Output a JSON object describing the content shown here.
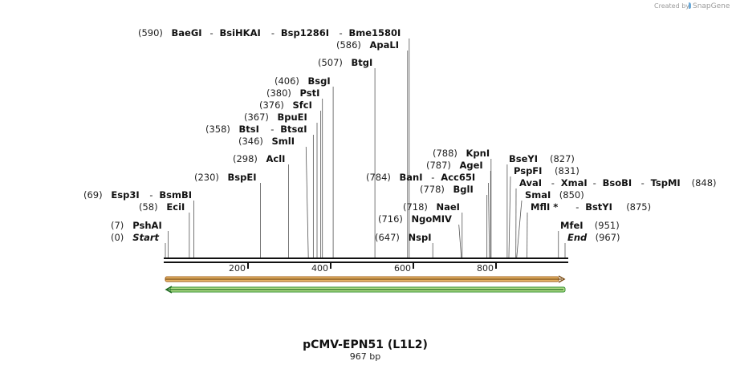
{
  "watermark": {
    "prefix": "Created by",
    "brand": "SnapGene"
  },
  "title": "pCMV-EPN51 (L1L2)",
  "subtitle": "967 bp",
  "sequence_length": 967,
  "ticks": [
    200,
    400,
    600,
    800
  ],
  "features": [
    {
      "name": "forward-feature",
      "direction": "forward",
      "start": 0,
      "end": 967,
      "color": "#e8b86a",
      "stroke": "#a0601a"
    },
    {
      "name": "reverse-feature",
      "direction": "reverse",
      "start": 0,
      "end": 967,
      "color": "#b5e08a",
      "stroke": "#2f8c2f"
    }
  ],
  "site_rows": [
    {
      "side": "left",
      "items": [
        {
          "pos": "(590)",
          "names": [
            "BaeGI",
            "BsiHKAI",
            "Bsp1286I",
            "Bme1580I"
          ]
        }
      ]
    },
    {
      "side": "left",
      "items": [
        {
          "pos": "(586)",
          "names": [
            "ApaLI"
          ]
        }
      ]
    },
    {
      "side": "left",
      "items": [
        {
          "pos": "(507)",
          "names": [
            "BtgI"
          ]
        }
      ]
    },
    {
      "side": "left",
      "items": [
        {
          "pos": "(406)",
          "names": [
            "BsgI"
          ]
        }
      ]
    },
    {
      "side": "left",
      "items": [
        {
          "pos": "(380)",
          "names": [
            "PstI"
          ]
        }
      ]
    },
    {
      "side": "left",
      "items": [
        {
          "pos": "(376)",
          "names": [
            "SfcI"
          ]
        }
      ]
    },
    {
      "side": "left",
      "items": [
        {
          "pos": "(367)",
          "names": [
            "BpuEI"
          ]
        }
      ]
    },
    {
      "side": "left",
      "items": [
        {
          "pos": "(358)",
          "names": [
            "BtsI",
            "BtsαI"
          ]
        }
      ]
    },
    {
      "side": "left",
      "items": [
        {
          "pos": "(346)",
          "names": [
            "SmlI"
          ]
        }
      ]
    },
    {
      "side": "left",
      "items": [
        {
          "pos": "(788)",
          "names": [
            "KpnI"
          ]
        }
      ]
    },
    {
      "side": "left",
      "items": [
        {
          "pos": "(787)",
          "names": [
            "AgeI"
          ]
        }
      ]
    },
    {
      "side": "left",
      "items": [
        {
          "pos": "(298)",
          "names": [
            "AclI"
          ]
        }
      ]
    },
    {
      "side": "right",
      "items": [
        {
          "pos": "(827)",
          "names": [
            "BseYI"
          ]
        }
      ]
    },
    {
      "side": "right",
      "items": [
        {
          "pos": "(831)",
          "names": [
            "PspFI"
          ]
        }
      ]
    },
    {
      "side": "left",
      "items": [
        {
          "pos": "(230)",
          "names": [
            "BspEI"
          ]
        }
      ]
    },
    {
      "side": "left",
      "items": [
        {
          "pos": "(784)",
          "names": [
            "BanI",
            "Acc65I"
          ]
        }
      ]
    },
    {
      "side": "right",
      "items": [
        {
          "pos": "(848)",
          "names": [
            "AvaI",
            "XmaI",
            "BsoBI",
            "TspMI"
          ]
        }
      ]
    },
    {
      "side": "left",
      "items": [
        {
          "pos": "(778)",
          "names": [
            "BglI"
          ]
        }
      ]
    },
    {
      "side": "left",
      "items": [
        {
          "pos": "(69)",
          "names": [
            "Esp3I",
            "BsmBI"
          ]
        }
      ]
    },
    {
      "side": "right",
      "items": [
        {
          "pos": "(850)",
          "names": [
            "SmaI"
          ]
        }
      ]
    },
    {
      "side": "left",
      "items": [
        {
          "pos": "(58)",
          "names": [
            "EciI"
          ]
        }
      ]
    },
    {
      "side": "left",
      "items": [
        {
          "pos": "(718)",
          "names": [
            "NaeI"
          ]
        }
      ]
    },
    {
      "side": "right",
      "items": [
        {
          "pos": "(875)",
          "names": [
            "MflI *",
            "BstYI"
          ]
        }
      ]
    },
    {
      "side": "left",
      "items": [
        {
          "pos": "(716)",
          "names": [
            "NgoMIV"
          ]
        }
      ]
    },
    {
      "side": "left",
      "items": [
        {
          "pos": "(7)",
          "names": [
            "PshAI"
          ]
        }
      ]
    },
    {
      "side": "right",
      "items": [
        {
          "pos": "(951)",
          "names": [
            "MfeI"
          ]
        }
      ]
    },
    {
      "side": "left",
      "items": [
        {
          "pos": "(0)",
          "names": [
            "Start"
          ]
        }
      ]
    },
    {
      "side": "left",
      "items": [
        {
          "pos": "(647)",
          "names": [
            "NspI"
          ]
        }
      ]
    },
    {
      "side": "right",
      "items": [
        {
          "pos": "(967)",
          "names": [
            "End"
          ]
        }
      ]
    }
  ]
}
